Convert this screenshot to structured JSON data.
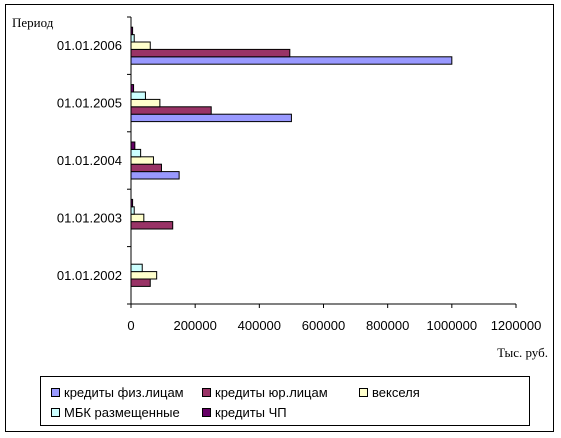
{
  "chart_data": {
    "type": "bar",
    "orientation": "horizontal",
    "title": "",
    "ylabel": "Период",
    "xlabel": "Тыс. руб.",
    "categories": [
      "01.01.2006",
      "01.01.2005",
      "01.01.2004",
      "01.01.2003",
      "01.01.2002"
    ],
    "xlim": [
      0,
      1200000
    ],
    "xticks": [
      "0",
      "200000",
      "400000",
      "600000",
      "800000",
      "1000000",
      "1200000"
    ],
    "grid": false,
    "legend_position": "bottom",
    "series": [
      {
        "name": "кредиты физ.лицам",
        "color": "#9999ff",
        "values": [
          1000000,
          500000,
          150000,
          0,
          0
        ]
      },
      {
        "name": "кредиты юр.лицам",
        "color": "#993366",
        "values": [
          495000,
          250000,
          95000,
          130000,
          60000
        ]
      },
      {
        "name": "векселя",
        "color": "#ffffcc",
        "values": [
          60000,
          90000,
          70000,
          40000,
          80000
        ]
      },
      {
        "name": "МБК размещенные",
        "color": "#ccffff",
        "values": [
          10000,
          45000,
          30000,
          10000,
          35000
        ]
      },
      {
        "name": "кредиты ЧП",
        "color": "#660066",
        "values": [
          5000,
          8000,
          12000,
          5000,
          0
        ]
      }
    ]
  }
}
